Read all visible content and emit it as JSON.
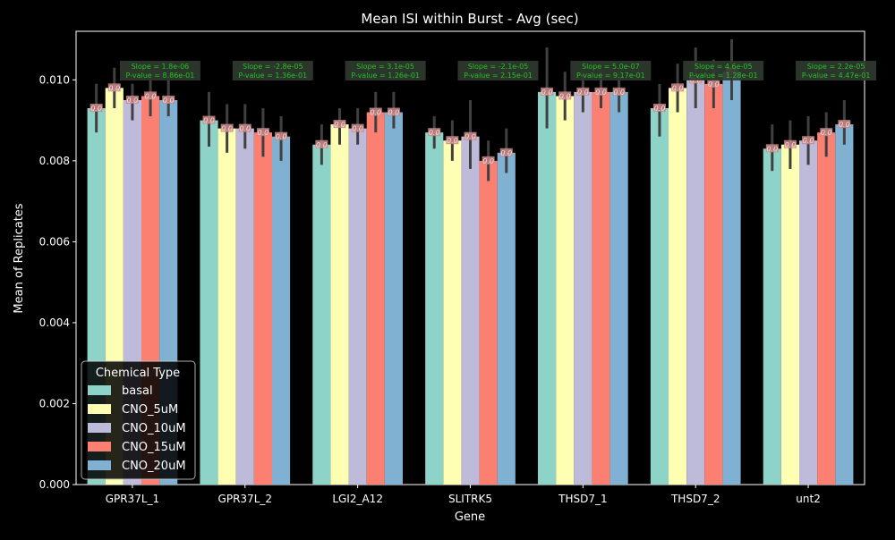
{
  "chart_data": {
    "type": "bar",
    "title": "Mean ISI within Burst - Avg (sec)",
    "xlabel": "Gene",
    "ylabel": "Mean of Replicates",
    "ylim": [
      0,
      0.0112
    ],
    "yticks": [
      "0.000",
      "0.002",
      "0.004",
      "0.006",
      "0.008",
      "0.010"
    ],
    "ytick_values": [
      0,
      0.002,
      0.004,
      0.006,
      0.008,
      0.01
    ],
    "categories": [
      "GPR37L_1",
      "GPR37L_2",
      "LGI2_A12",
      "SLITRK5",
      "THSD7_1",
      "THSD7_2",
      "unt2"
    ],
    "legend": {
      "title": "Chemical Type",
      "placement": "lower-left"
    },
    "bar_label": "0.0",
    "series": [
      {
        "name": "basal",
        "color": "#8dd3c7",
        "values": [
          0.0093,
          0.009,
          0.0084,
          0.0087,
          0.0097,
          0.0093,
          0.0083
        ],
        "err_low": [
          0.0087,
          0.00835,
          0.0079,
          0.0083,
          0.0088,
          0.0086,
          0.00775
        ],
        "err_high": [
          0.0099,
          0.0097,
          0.0089,
          0.0091,
          0.0108,
          0.0099,
          0.0089
        ]
      },
      {
        "name": "CNO_5uM",
        "color": "#ffffb3",
        "values": [
          0.0098,
          0.0088,
          0.0089,
          0.0085,
          0.0096,
          0.0098,
          0.0084
        ],
        "err_low": [
          0.0093,
          0.0082,
          0.0084,
          0.008,
          0.009,
          0.0092,
          0.0078
        ],
        "err_high": [
          0.0103,
          0.0094,
          0.0093,
          0.009,
          0.0102,
          0.0104,
          0.009
        ]
      },
      {
        "name": "CNO_10uM",
        "color": "#bebada",
        "values": [
          0.0095,
          0.0088,
          0.0088,
          0.0086,
          0.0097,
          0.01,
          0.0085
        ],
        "err_low": [
          0.009,
          0.0083,
          0.0084,
          0.0078,
          0.0092,
          0.0093,
          0.0079
        ],
        "err_high": [
          0.0099,
          0.0094,
          0.0093,
          0.0095,
          0.0102,
          0.0108,
          0.0091
        ]
      },
      {
        "name": "CNO_15uM",
        "color": "#fb8072",
        "values": [
          0.0096,
          0.0087,
          0.0092,
          0.008,
          0.0097,
          0.0099,
          0.0087
        ],
        "err_low": [
          0.0091,
          0.0081,
          0.0087,
          0.0075,
          0.0093,
          0.0093,
          0.0081
        ],
        "err_high": [
          0.01,
          0.0093,
          0.0097,
          0.0085,
          0.0102,
          0.0105,
          0.0092
        ]
      },
      {
        "name": "CNO_20uM",
        "color": "#80b1d3",
        "values": [
          0.0095,
          0.0086,
          0.0092,
          0.0082,
          0.0097,
          0.0102,
          0.0089
        ],
        "err_low": [
          0.0091,
          0.008,
          0.0088,
          0.0077,
          0.0092,
          0.0095,
          0.0084
        ],
        "err_high": [
          0.01,
          0.0091,
          0.0097,
          0.0088,
          0.0102,
          0.011,
          0.0095
        ]
      }
    ],
    "annotations": [
      {
        "category": "GPR37L_1",
        "line1": "Slope = 1.8e-06",
        "line2": "P-value = 8.86e-01"
      },
      {
        "category": "GPR37L_2",
        "line1": "Slope = -2.8e-05",
        "line2": "P-value = 1.36e-01"
      },
      {
        "category": "LGI2_A12",
        "line1": "Slope = 3.1e-05",
        "line2": "P-value = 1.26e-01"
      },
      {
        "category": "SLITRK5",
        "line1": "Slope = -2.1e-05",
        "line2": "P-value = 2.15e-01"
      },
      {
        "category": "THSD7_1",
        "line1": "Slope = 5.0e-07",
        "line2": "P-value = 9.17e-01"
      },
      {
        "category": "THSD7_2",
        "line1": "Slope = 4.6e-05",
        "line2": "P-value = 1.28e-01"
      },
      {
        "category": "unt2",
        "line1": "Slope = 2.2e-05",
        "line2": "P-value = 4.47e-01"
      }
    ]
  }
}
